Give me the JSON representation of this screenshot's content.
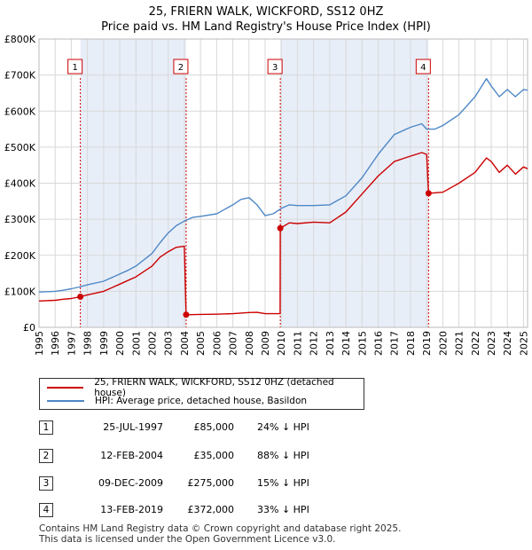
{
  "chart_data": {
    "type": "line",
    "title": "25, FRIERN WALK, WICKFORD, SS12 0HZ",
    "subtitle": "Price paid vs. HM Land Registry's House Price Index (HPI)",
    "xlim": [
      1995,
      2025.25
    ],
    "ylim": [
      0,
      800000
    ],
    "x_ticks": [
      "1995",
      "1996",
      "1997",
      "1998",
      "1999",
      "2000",
      "2001",
      "2002",
      "2003",
      "2004",
      "2005",
      "2006",
      "2007",
      "2008",
      "2009",
      "2010",
      "2011",
      "2012",
      "2013",
      "2014",
      "2015",
      "2016",
      "2017",
      "2018",
      "2019",
      "2020",
      "2021",
      "2022",
      "2023",
      "2024",
      "2025"
    ],
    "y_ticks": [
      {
        "value": 0,
        "label": "£0"
      },
      {
        "value": 100000,
        "label": "£100K"
      },
      {
        "value": 200000,
        "label": "£200K"
      },
      {
        "value": 300000,
        "label": "£300K"
      },
      {
        "value": 400000,
        "label": "£400K"
      },
      {
        "value": 500000,
        "label": "£500K"
      },
      {
        "value": 600000,
        "label": "£600K"
      },
      {
        "value": 700000,
        "label": "£700K"
      },
      {
        "value": 800000,
        "label": "£800K"
      }
    ],
    "series": [
      {
        "name": "25, FRIERN WALK, WICKFORD, SS12 0HZ (detached house)",
        "color": "#cc0000",
        "points": [
          [
            1995.0,
            73000
          ],
          [
            1996.0,
            75000
          ],
          [
            1996.5,
            78000
          ],
          [
            1997.0,
            80000
          ],
          [
            1997.56,
            85000
          ],
          [
            1998.0,
            90000
          ],
          [
            1999.0,
            100000
          ],
          [
            2000.0,
            120000
          ],
          [
            2000.5,
            130000
          ],
          [
            2001.0,
            140000
          ],
          [
            2002.0,
            170000
          ],
          [
            2002.5,
            195000
          ],
          [
            2003.0,
            210000
          ],
          [
            2003.5,
            222000
          ],
          [
            2004.0,
            225000
          ],
          [
            2004.11,
            35000
          ],
          [
            2005.0,
            36000
          ],
          [
            2006.0,
            36500
          ],
          [
            2007.0,
            38000
          ],
          [
            2008.0,
            41000
          ],
          [
            2008.5,
            41500
          ],
          [
            2009.0,
            38000
          ],
          [
            2009.93,
            38000
          ],
          [
            2009.94,
            275000
          ],
          [
            2010.5,
            290000
          ],
          [
            2011.0,
            288000
          ],
          [
            2012.0,
            292000
          ],
          [
            2013.0,
            290000
          ],
          [
            2014.0,
            320000
          ],
          [
            2015.0,
            370000
          ],
          [
            2016.0,
            420000
          ],
          [
            2017.0,
            460000
          ],
          [
            2018.0,
            475000
          ],
          [
            2018.7,
            485000
          ],
          [
            2019.0,
            480000
          ],
          [
            2019.12,
            372000
          ],
          [
            2020.0,
            375000
          ],
          [
            2021.0,
            400000
          ],
          [
            2022.0,
            430000
          ],
          [
            2022.7,
            470000
          ],
          [
            2023.0,
            460000
          ],
          [
            2023.5,
            430000
          ],
          [
            2024.0,
            450000
          ],
          [
            2024.5,
            425000
          ],
          [
            2025.0,
            445000
          ],
          [
            2025.25,
            440000
          ]
        ]
      },
      {
        "name": "HPI: Average price, detached house, Basildon",
        "color": "#4e88c7",
        "points": [
          [
            1995.0,
            98000
          ],
          [
            1996.0,
            100000
          ],
          [
            1996.5,
            103000
          ],
          [
            1997.0,
            107000
          ],
          [
            1997.5,
            112000
          ],
          [
            1998.0,
            118000
          ],
          [
            1999.0,
            128000
          ],
          [
            2000.0,
            148000
          ],
          [
            2000.5,
            158000
          ],
          [
            2001.0,
            170000
          ],
          [
            2002.0,
            205000
          ],
          [
            2002.5,
            235000
          ],
          [
            2003.0,
            262000
          ],
          [
            2003.5,
            282000
          ],
          [
            2004.0,
            295000
          ],
          [
            2004.5,
            305000
          ],
          [
            2005.0,
            308000
          ],
          [
            2006.0,
            315000
          ],
          [
            2007.0,
            340000
          ],
          [
            2007.5,
            355000
          ],
          [
            2008.0,
            360000
          ],
          [
            2008.5,
            340000
          ],
          [
            2009.0,
            310000
          ],
          [
            2009.5,
            315000
          ],
          [
            2010.0,
            330000
          ],
          [
            2010.5,
            340000
          ],
          [
            2011.0,
            338000
          ],
          [
            2012.0,
            338000
          ],
          [
            2013.0,
            340000
          ],
          [
            2014.0,
            365000
          ],
          [
            2015.0,
            415000
          ],
          [
            2016.0,
            480000
          ],
          [
            2017.0,
            535000
          ],
          [
            2018.0,
            555000
          ],
          [
            2018.7,
            565000
          ],
          [
            2019.0,
            550000
          ],
          [
            2019.5,
            550000
          ],
          [
            2020.0,
            560000
          ],
          [
            2021.0,
            590000
          ],
          [
            2022.0,
            640000
          ],
          [
            2022.7,
            690000
          ],
          [
            2023.0,
            670000
          ],
          [
            2023.5,
            640000
          ],
          [
            2024.0,
            660000
          ],
          [
            2024.5,
            640000
          ],
          [
            2025.0,
            660000
          ],
          [
            2025.25,
            658000
          ]
        ]
      }
    ],
    "sales": [
      {
        "num": "1",
        "x": 1997.56,
        "price": 85000
      },
      {
        "num": "2",
        "x": 2004.11,
        "price": 35000
      },
      {
        "num": "3",
        "x": 2009.94,
        "price": 275000
      },
      {
        "num": "4",
        "x": 2019.12,
        "price": 372000
      }
    ],
    "grid": true
  },
  "legend": {
    "property_label": "25, FRIERN WALK, WICKFORD, SS12 0HZ (detached house)",
    "hpi_label": "HPI: Average price, detached house, Basildon",
    "property_color": "#cc0000",
    "hpi_color": "#4e88c7"
  },
  "transactions": [
    {
      "num": "1",
      "date": "25-JUL-1997",
      "price": "£85,000",
      "hpi": "24% ↓ HPI"
    },
    {
      "num": "2",
      "date": "12-FEB-2004",
      "price": "£35,000",
      "hpi": "88% ↓ HPI"
    },
    {
      "num": "3",
      "date": "09-DEC-2009",
      "price": "£275,000",
      "hpi": "15% ↓ HPI"
    },
    {
      "num": "4",
      "date": "13-FEB-2019",
      "price": "£372,000",
      "hpi": "33% ↓ HPI"
    }
  ],
  "footer": {
    "line1": "Contains HM Land Registry data © Crown copyright and database right 2025.",
    "line2": "This data is licensed under the Open Government Licence v3.0."
  }
}
